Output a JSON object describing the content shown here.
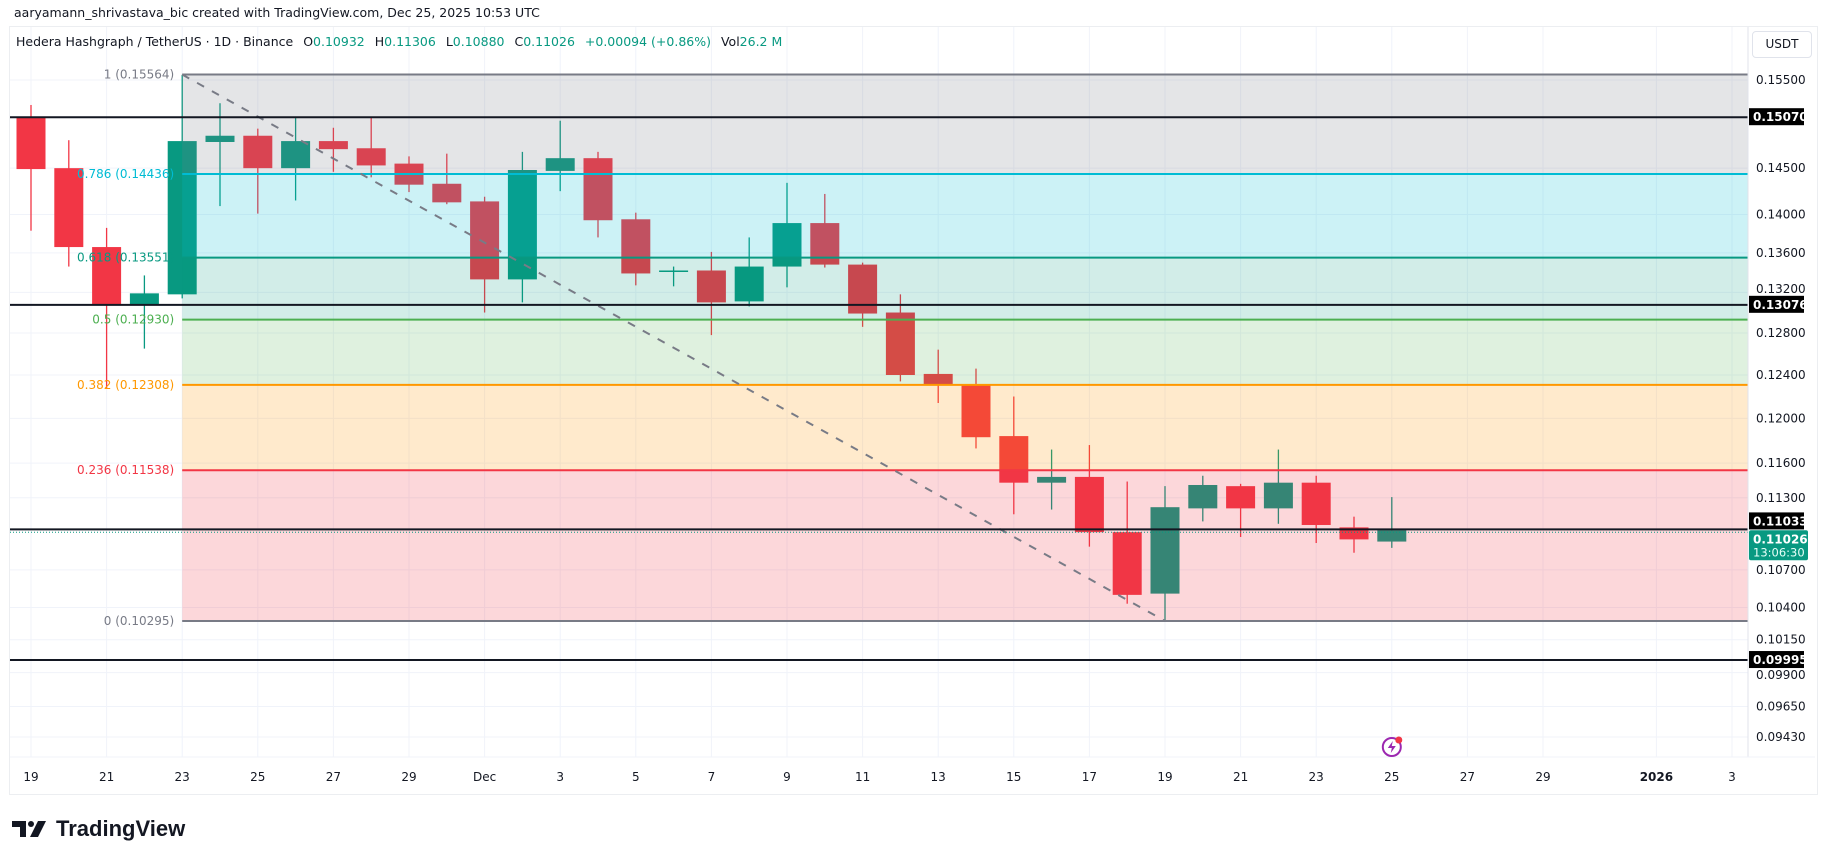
{
  "credit": "aaryamann_shrivastava_bic created with TradingView.com, Dec 25, 2025 10:53 UTC",
  "legend": {
    "symbol": "Hedera Hashgraph / TetherUS · 1D · Binance",
    "o_label": "O",
    "o": "0.10932",
    "h_label": "H",
    "h": "0.11306",
    "l_label": "L",
    "l": "0.10880",
    "c_label": "C",
    "c": "0.11026",
    "change": "+0.00094 (+0.86%)",
    "vol_label": "Vol",
    "vol": "26.2 M"
  },
  "currency_button": "USDT",
  "logo_text": "TradingView",
  "colors": {
    "up": "#089981",
    "down": "#f23645",
    "grid": "#f0f3fa",
    "event_icon": "#9c27b0"
  },
  "chart_data": {
    "type": "candlestick",
    "scale": "log",
    "ylim": [
      0.0935,
      0.1575
    ],
    "grid": true,
    "y_ticks": [
      "0.15500",
      "0.14500",
      "0.14000",
      "0.13600",
      "0.13200",
      "0.12800",
      "0.12400",
      "0.12000",
      "0.11600",
      "0.11300",
      "0.10700",
      "0.10400",
      "0.10150",
      "0.09900",
      "0.09650",
      "0.09430"
    ],
    "x_ticks": [
      {
        "day": 0,
        "label": "19"
      },
      {
        "day": 2,
        "label": "21"
      },
      {
        "day": 4,
        "label": "23"
      },
      {
        "day": 6,
        "label": "25"
      },
      {
        "day": 8,
        "label": "27"
      },
      {
        "day": 10,
        "label": "29"
      },
      {
        "day": 12,
        "label": "Dec"
      },
      {
        "day": 14,
        "label": "3"
      },
      {
        "day": 16,
        "label": "5"
      },
      {
        "day": 18,
        "label": "7"
      },
      {
        "day": 20,
        "label": "9"
      },
      {
        "day": 22,
        "label": "11"
      },
      {
        "day": 24,
        "label": "13"
      },
      {
        "day": 26,
        "label": "15"
      },
      {
        "day": 28,
        "label": "17"
      },
      {
        "day": 30,
        "label": "19"
      },
      {
        "day": 32,
        "label": "21"
      },
      {
        "day": 34,
        "label": "23"
      },
      {
        "day": 36,
        "label": "25"
      },
      {
        "day": 38,
        "label": "27"
      },
      {
        "day": 40,
        "label": "29"
      },
      {
        "day": 43,
        "label": "2026",
        "bold": true
      },
      {
        "day": 45,
        "label": "3"
      }
    ],
    "candles": [
      {
        "date": "Nov 19",
        "o": 0.1507,
        "h": 0.1521,
        "l": 0.1383,
        "c": 0.1449
      },
      {
        "date": "Nov 20",
        "o": 0.145,
        "h": 0.1481,
        "l": 0.1346,
        "c": 0.1366
      },
      {
        "date": "Nov 21",
        "o": 0.1366,
        "h": 0.1386,
        "l": 0.1227,
        "c": 0.1308
      },
      {
        "date": "Nov 22",
        "o": 0.1308,
        "h": 0.1337,
        "l": 0.1265,
        "c": 0.1319
      },
      {
        "date": "Nov 23",
        "o": 0.1318,
        "h": 0.1556,
        "l": 0.1314,
        "c": 0.148
      },
      {
        "date": "Nov 24",
        "o": 0.1479,
        "h": 0.1523,
        "l": 0.1409,
        "c": 0.1486
      },
      {
        "date": "Nov 25",
        "o": 0.1486,
        "h": 0.1494,
        "l": 0.1401,
        "c": 0.145
      },
      {
        "date": "Nov 26",
        "o": 0.145,
        "h": 0.1506,
        "l": 0.1415,
        "c": 0.148
      },
      {
        "date": "Nov 27",
        "o": 0.148,
        "h": 0.1495,
        "l": 0.1446,
        "c": 0.1471
      },
      {
        "date": "Nov 28",
        "o": 0.1472,
        "h": 0.1507,
        "l": 0.144,
        "c": 0.1453
      },
      {
        "date": "Nov 29",
        "o": 0.1455,
        "h": 0.1463,
        "l": 0.1424,
        "c": 0.1432
      },
      {
        "date": "Nov 30",
        "o": 0.1433,
        "h": 0.1466,
        "l": 0.1411,
        "c": 0.1413
      },
      {
        "date": "Dec 1",
        "o": 0.1414,
        "h": 0.1419,
        "l": 0.13,
        "c": 0.1333
      },
      {
        "date": "Dec 2",
        "o": 0.1333,
        "h": 0.1468,
        "l": 0.131,
        "c": 0.1448
      },
      {
        "date": "Dec 3",
        "o": 0.1447,
        "h": 0.1503,
        "l": 0.1425,
        "c": 0.1461
      },
      {
        "date": "Dec 4",
        "o": 0.1461,
        "h": 0.1468,
        "l": 0.1376,
        "c": 0.1394
      },
      {
        "date": "Dec 5",
        "o": 0.1395,
        "h": 0.1402,
        "l": 0.1327,
        "c": 0.1339
      },
      {
        "date": "Dec 6",
        "o": 0.1341,
        "h": 0.1346,
        "l": 0.1326,
        "c": 0.1342
      },
      {
        "date": "Dec 7",
        "o": 0.1342,
        "h": 0.1361,
        "l": 0.1278,
        "c": 0.131
      },
      {
        "date": "Dec 8",
        "o": 0.1311,
        "h": 0.1376,
        "l": 0.1306,
        "c": 0.1346
      },
      {
        "date": "Dec 9",
        "o": 0.1346,
        "h": 0.1434,
        "l": 0.1325,
        "c": 0.1391
      },
      {
        "date": "Dec 10",
        "o": 0.1391,
        "h": 0.1422,
        "l": 0.1345,
        "c": 0.1348
      },
      {
        "date": "Dec 11",
        "o": 0.1348,
        "h": 0.135,
        "l": 0.1286,
        "c": 0.1299
      },
      {
        "date": "Dec 12",
        "o": 0.13,
        "h": 0.1318,
        "l": 0.1234,
        "c": 0.124
      },
      {
        "date": "Dec 13",
        "o": 0.1241,
        "h": 0.1264,
        "l": 0.1214,
        "c": 0.1231
      },
      {
        "date": "Dec 14",
        "o": 0.1231,
        "h": 0.1246,
        "l": 0.1173,
        "c": 0.1183
      },
      {
        "date": "Dec 15",
        "o": 0.1184,
        "h": 0.122,
        "l": 0.1116,
        "c": 0.1143
      },
      {
        "date": "Dec 16",
        "o": 0.1143,
        "h": 0.1172,
        "l": 0.112,
        "c": 0.1148
      },
      {
        "date": "Dec 17",
        "o": 0.1148,
        "h": 0.1176,
        "l": 0.1089,
        "c": 0.1101
      },
      {
        "date": "Dec 18",
        "o": 0.1101,
        "h": 0.1144,
        "l": 0.1043,
        "c": 0.105
      },
      {
        "date": "Dec 19",
        "o": 0.1051,
        "h": 0.114,
        "l": 0.103,
        "c": 0.1122
      },
      {
        "date": "Dec 20",
        "o": 0.1121,
        "h": 0.1149,
        "l": 0.111,
        "c": 0.1141
      },
      {
        "date": "Dec 21",
        "o": 0.114,
        "h": 0.1142,
        "l": 0.1097,
        "c": 0.1121
      },
      {
        "date": "Dec 22",
        "o": 0.1121,
        "h": 0.1172,
        "l": 0.1108,
        "c": 0.1143
      },
      {
        "date": "Dec 23",
        "o": 0.1143,
        "h": 0.1149,
        "l": 0.1092,
        "c": 0.1107
      },
      {
        "date": "Dec 24",
        "o": 0.1105,
        "h": 0.1114,
        "l": 0.1084,
        "c": 0.1095
      },
      {
        "date": "Dec 25",
        "o": 0.10932,
        "h": 0.11306,
        "l": 0.1088,
        "c": 0.11026
      }
    ],
    "fibonacci": {
      "start_day": 4,
      "trend_line": {
        "from_day": 4,
        "from_price": 0.15564,
        "to_day": 30,
        "to_price": 0.10295
      },
      "levels": [
        {
          "ratio": "1",
          "price": 0.15564,
          "label": "1 (0.15564)",
          "color": "#787b86",
          "fill": "rgba(120,123,134,0.2)"
        },
        {
          "ratio": "0.786",
          "price": 0.14436,
          "label": "0.786 (0.14436)",
          "color": "#00bcd4",
          "fill": "rgba(0,188,212,0.2)"
        },
        {
          "ratio": "0.618",
          "price": 0.13551,
          "label": "0.618 (0.13551)",
          "color": "#089981",
          "fill": "rgba(8,153,129,0.18)"
        },
        {
          "ratio": "0.5",
          "price": 0.1293,
          "label": "0.5 (0.12930)",
          "color": "#4caf50",
          "fill": "rgba(76,175,80,0.18)"
        },
        {
          "ratio": "0.382",
          "price": 0.12308,
          "label": "0.382 (0.12308)",
          "color": "#ff9800",
          "fill": "rgba(255,152,0,0.2)"
        },
        {
          "ratio": "0.236",
          "price": 0.11538,
          "label": "0.236 (0.11538)",
          "color": "#f23645",
          "fill": "rgba(242,54,69,0.2)"
        },
        {
          "ratio": "0",
          "price": 0.10295,
          "label": "0 (0.10295)",
          "color": "#787b86",
          "fill": null
        }
      ]
    },
    "horizontal_lines": [
      {
        "price": 0.1507,
        "label": "0.15070"
      },
      {
        "price": 0.13076,
        "label": "0.13076"
      },
      {
        "price": 0.11033,
        "label": "0.11033"
      },
      {
        "price": 0.09995,
        "label": "0.09995"
      }
    ],
    "last_price": {
      "price": 0.11026,
      "label": "0.11026",
      "countdown": "13:06:30"
    },
    "event_marker_day": 36
  }
}
